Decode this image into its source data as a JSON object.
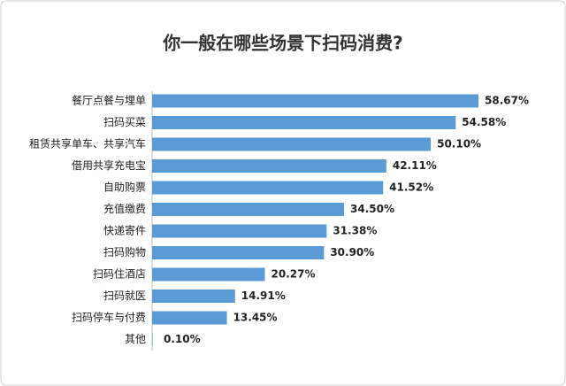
{
  "chart_data": {
    "type": "bar",
    "orientation": "horizontal",
    "title": "你一般在哪些场景下扫码消费?",
    "categories": [
      "餐厅点餐与埋单",
      "扫码买菜",
      "租赁共享单车、共享汽车",
      "借用共享充电宝",
      "自助购票",
      "充值缴费",
      "快递寄件",
      "扫码购物",
      "扫码住酒店",
      "扫码就医",
      "扫码停车与付费",
      "其他"
    ],
    "values": [
      58.67,
      54.58,
      50.1,
      42.11,
      41.52,
      34.5,
      31.38,
      30.9,
      20.27,
      14.91,
      13.45,
      0.1
    ],
    "value_labels": [
      "58.67%",
      "54.58%",
      "50.10%",
      "42.11%",
      "41.52%",
      "34.50%",
      "31.38%",
      "30.90%",
      "20.27%",
      "14.91%",
      "13.45%",
      "0.10%"
    ],
    "color": "#5b9bd5"
  }
}
